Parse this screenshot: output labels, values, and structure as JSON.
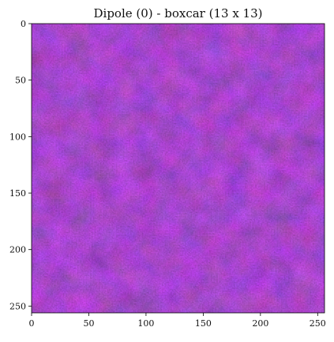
{
  "chart_data": {
    "type": "heatmap",
    "title": "Dipole (0) - boxcar (13 x 13)",
    "xlabel": "",
    "ylabel": "",
    "x_ticks": [
      0,
      50,
      100,
      150,
      200,
      250
    ],
    "y_ticks": [
      0,
      50,
      100,
      150,
      200,
      250
    ],
    "xlim": [
      0,
      256
    ],
    "ylim": [
      256,
      0
    ],
    "image_size": [
      256,
      256
    ],
    "grid": false,
    "colormap": [
      "#5a1a80",
      "#6a1aa0",
      "#7a1aa6",
      "#7214a0"
    ],
    "base_color": "#6a1a9e",
    "description_values": {
      "dominant_hue": "purple",
      "texture": "smooth noise"
    }
  }
}
